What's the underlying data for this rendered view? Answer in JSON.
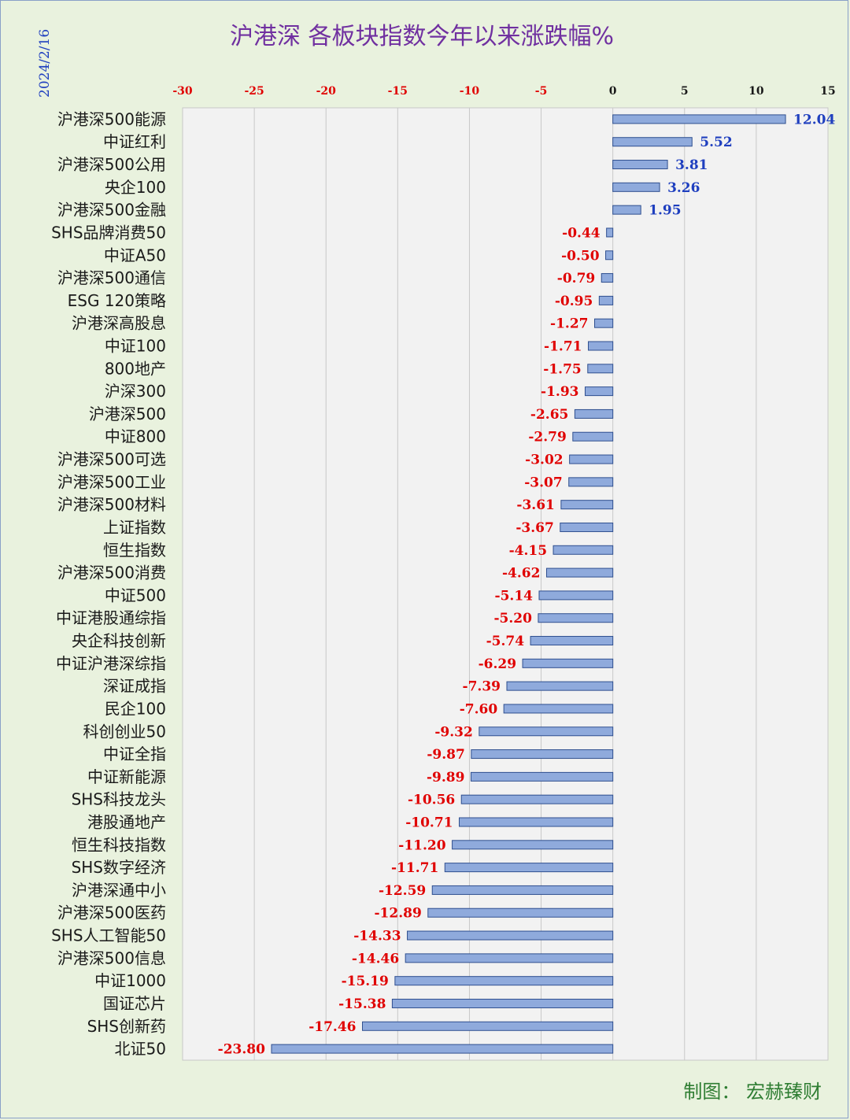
{
  "colors": {
    "background": "#e9f2de",
    "plot_background": "#f2f2f2",
    "bar_fill": "#8faadc",
    "bar_stroke": "#2f4f8f",
    "positive_label": "#1f3fbf",
    "negative_label": "#e00000",
    "title": "#7030a0",
    "credit": "#2e7d32"
  },
  "chart_data": {
    "type": "bar",
    "orientation": "horizontal",
    "title": "沪港深 各板块指数今年以来涨跌幅%",
    "date": "2024/2/16",
    "credit": "制图：  宏赫臻财",
    "xlim": [
      -30,
      15
    ],
    "xticks": [
      "-30",
      "-25",
      "-20",
      "-15",
      "-10",
      "-5",
      "0",
      "5",
      "10",
      "15"
    ],
    "xtick_values": [
      -30,
      -25,
      -20,
      -15,
      -10,
      -5,
      0,
      5,
      10,
      15
    ],
    "grid": true,
    "categories": [
      "沪港深500能源",
      "中证红利",
      "沪港深500公用",
      "央企100",
      "沪港深500金融",
      "SHS品牌消费50",
      "中证A50",
      "沪港深500通信",
      "ESG 120策略",
      "沪港深高股息",
      "中证100",
      "800地产",
      "沪深300",
      "沪港深500",
      "中证800",
      "沪港深500可选",
      "沪港深500工业",
      "沪港深500材料",
      "上证指数",
      "恒生指数",
      "沪港深500消费",
      "中证500",
      "中证港股通综指",
      "央企科技创新",
      "中证沪港深综指",
      "深证成指",
      "民企100",
      "科创创业50",
      "中证全指",
      "中证新能源",
      "SHS科技龙头",
      "港股通地产",
      "恒生科技指数",
      "SHS数字经济",
      "沪港深通中小",
      "沪港深500医药",
      "SHS人工智能50",
      "沪港深500信息",
      "中证1000",
      "国证芯片",
      "SHS创新药",
      "北证50"
    ],
    "values": [
      12.04,
      5.52,
      3.81,
      3.26,
      1.95,
      -0.44,
      -0.5,
      -0.79,
      -0.95,
      -1.27,
      -1.71,
      -1.75,
      -1.93,
      -2.65,
      -2.79,
      -3.02,
      -3.07,
      -3.61,
      -3.67,
      -4.15,
      -4.62,
      -5.14,
      -5.2,
      -5.74,
      -6.29,
      -7.39,
      -7.6,
      -9.32,
      -9.87,
      -9.89,
      -10.56,
      -10.71,
      -11.2,
      -11.71,
      -12.59,
      -12.89,
      -14.33,
      -14.46,
      -15.19,
      -15.38,
      -17.46,
      -23.8
    ],
    "value_labels": [
      "12.04",
      "5.52",
      "3.81",
      "3.26",
      "1.95",
      "-0.44",
      "-0.50",
      "-0.79",
      "-0.95",
      "-1.27",
      "-1.71",
      "-1.75",
      "-1.93",
      "-2.65",
      "-2.79",
      "-3.02",
      "-3.07",
      "-3.61",
      "-3.67",
      "-4.15",
      "-4.62",
      "-5.14",
      "-5.20",
      "-5.74",
      "-6.29",
      "-7.39",
      "-7.60",
      "-9.32",
      "-9.87",
      "-9.89",
      "-10.56",
      "-10.71",
      "-11.20",
      "-11.71",
      "-12.59",
      "-12.89",
      "-14.33",
      "-14.46",
      "-15.19",
      "-15.38",
      "-17.46",
      "-23.80"
    ]
  }
}
